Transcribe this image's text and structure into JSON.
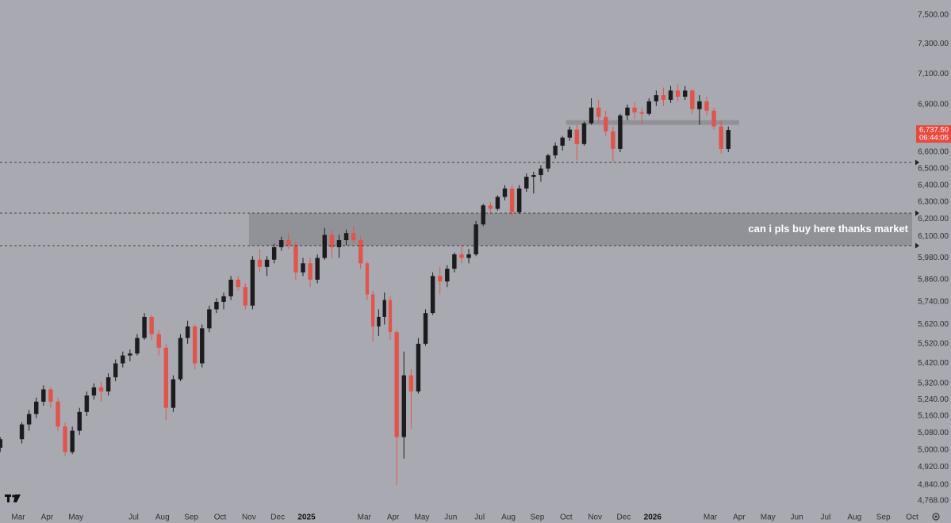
{
  "chart_data": {
    "type": "candlestick",
    "annotation": "can i pls buy here thanks market",
    "last_price": {
      "value": 6737.5,
      "label": "6,737.50"
    },
    "countdown": "06:44:05",
    "up_color": "#1c1c1e",
    "down_color": "#e0544c",
    "price_color": "#e8493f",
    "log_scale": true,
    "ylim": [
      4712,
      7606
    ],
    "yticks": [
      {
        "value": 7500,
        "label": "7,500.00"
      },
      {
        "value": 7300,
        "label": "7,300.00"
      },
      {
        "value": 7100,
        "label": "7,100.00"
      },
      {
        "value": 6900,
        "label": "6,900.00"
      },
      {
        "value": 6600,
        "label": "6,600.00"
      },
      {
        "value": 6500,
        "label": "6,500.00"
      },
      {
        "value": 6400,
        "label": "6,400.00"
      },
      {
        "value": 6300,
        "label": "6,300.00"
      },
      {
        "value": 6200,
        "label": "6,200.00"
      },
      {
        "value": 6100,
        "label": "6,100.00"
      },
      {
        "value": 5980,
        "label": "5,980.00"
      },
      {
        "value": 5860,
        "label": "5,860.00"
      },
      {
        "value": 5740,
        "label": "5,740.00"
      },
      {
        "value": 5620,
        "label": "5,620.00"
      },
      {
        "value": 5520,
        "label": "5,520.00"
      },
      {
        "value": 5420,
        "label": "5,420.00"
      },
      {
        "value": 5320,
        "label": "5,320.00"
      },
      {
        "value": 5240,
        "label": "5,240.00"
      },
      {
        "value": 5160,
        "label": "5,160.00"
      },
      {
        "value": 5080,
        "label": "5,080.00"
      },
      {
        "value": 5000,
        "label": "5,000.00"
      },
      {
        "value": 4920,
        "label": "4,920.00"
      },
      {
        "value": 4840,
        "label": "4,840.00"
      },
      {
        "value": 4768,
        "label": "4,768.00"
      }
    ],
    "xlim": [
      "2024-02",
      "2026-10"
    ],
    "xticks": [
      {
        "value": "2024-03",
        "label": "Mar"
      },
      {
        "value": "2024-04",
        "label": "Apr"
      },
      {
        "value": "2024-05",
        "label": "May"
      },
      {
        "value": "2024-07",
        "label": "Jul"
      },
      {
        "value": "2024-08",
        "label": "Aug"
      },
      {
        "value": "2024-09",
        "label": "Sep"
      },
      {
        "value": "2024-10",
        "label": "Oct"
      },
      {
        "value": "2024-11",
        "label": "Nov"
      },
      {
        "value": "2024-12",
        "label": "Dec"
      },
      {
        "value": "2025-01",
        "label": "2025"
      },
      {
        "value": "2025-03",
        "label": "Mar"
      },
      {
        "value": "2025-04",
        "label": "Apr"
      },
      {
        "value": "2025-05",
        "label": "May"
      },
      {
        "value": "2025-06",
        "label": "Jun"
      },
      {
        "value": "2025-07",
        "label": "Jul"
      },
      {
        "value": "2025-08",
        "label": "Aug"
      },
      {
        "value": "2025-09",
        "label": "Sep"
      },
      {
        "value": "2025-10",
        "label": "Oct"
      },
      {
        "value": "2025-11",
        "label": "Nov"
      },
      {
        "value": "2025-12",
        "label": "Dec"
      },
      {
        "value": "2026-01",
        "label": "2026"
      },
      {
        "value": "2026-03",
        "label": "Mar"
      },
      {
        "value": "2026-04",
        "label": "Apr"
      },
      {
        "value": "2026-05",
        "label": "May"
      },
      {
        "value": "2026-06",
        "label": "Jun"
      },
      {
        "value": "2026-07",
        "label": "Jul"
      },
      {
        "value": "2026-08",
        "label": "Aug"
      },
      {
        "value": "2026-09",
        "label": "Sep"
      },
      {
        "value": "2026-10",
        "label": "Oct"
      }
    ],
    "levels": [
      6537,
      6235,
      6049
    ],
    "zones": [
      {
        "from": 6049,
        "to": 6235,
        "start": "2024-11",
        "color": "#8d8e94"
      },
      {
        "from": 6770,
        "to": 6800,
        "start": "2025-10",
        "end": "2026-04",
        "color": "#8d8e94"
      }
    ],
    "months": [
      {
        "month": "2024-02",
        "candles": [
          [
            4990,
            5030,
            4960,
            5010
          ],
          [
            5010,
            5060,
            4990,
            5050
          ]
        ]
      },
      {
        "month": "2024-03",
        "candles": [
          [
            5050,
            5130,
            5030,
            5120
          ],
          [
            5120,
            5190,
            5090,
            5170
          ],
          [
            5170,
            5250,
            5150,
            5230
          ],
          [
            5230,
            5310,
            5210,
            5290
          ]
        ]
      },
      {
        "month": "2024-04",
        "candles": [
          [
            5290,
            5300,
            5200,
            5230
          ],
          [
            5230,
            5250,
            5090,
            5110
          ],
          [
            5110,
            5130,
            4970,
            4990
          ],
          [
            4990,
            5110,
            4980,
            5090
          ]
        ]
      },
      {
        "month": "2024-05",
        "candles": [
          [
            5090,
            5200,
            5070,
            5180
          ],
          [
            5180,
            5280,
            5160,
            5260
          ],
          [
            5260,
            5320,
            5240,
            5300
          ],
          [
            5300,
            5330,
            5230,
            5280
          ]
        ]
      },
      {
        "month": "2024-06",
        "candles": [
          [
            5280,
            5370,
            5260,
            5350
          ],
          [
            5350,
            5440,
            5330,
            5420
          ],
          [
            5420,
            5480,
            5400,
            5460
          ],
          [
            5460,
            5490,
            5430,
            5470
          ]
        ]
      },
      {
        "month": "2024-07",
        "candles": [
          [
            5470,
            5570,
            5460,
            5550
          ],
          [
            5550,
            5680,
            5540,
            5660
          ],
          [
            5660,
            5670,
            5540,
            5570
          ],
          [
            5570,
            5590,
            5460,
            5500
          ]
        ]
      },
      {
        "month": "2024-08",
        "candles": [
          [
            5500,
            5520,
            5140,
            5200
          ],
          [
            5200,
            5360,
            5180,
            5340
          ],
          [
            5340,
            5570,
            5330,
            5550
          ],
          [
            5550,
            5640,
            5520,
            5610
          ]
        ]
      },
      {
        "month": "2024-09",
        "candles": [
          [
            5610,
            5620,
            5390,
            5420
          ],
          [
            5420,
            5620,
            5400,
            5600
          ],
          [
            5600,
            5720,
            5580,
            5700
          ],
          [
            5700,
            5760,
            5680,
            5740
          ]
        ]
      },
      {
        "month": "2024-10",
        "candles": [
          [
            5740,
            5790,
            5700,
            5770
          ],
          [
            5770,
            5880,
            5750,
            5860
          ],
          [
            5860,
            5880,
            5800,
            5820
          ],
          [
            5820,
            5840,
            5700,
            5720
          ]
        ]
      },
      {
        "month": "2024-11",
        "candles": [
          [
            5720,
            5990,
            5700,
            5970
          ],
          [
            5970,
            6030,
            5900,
            5930
          ],
          [
            5930,
            5990,
            5880,
            5970
          ],
          [
            5970,
            6060,
            5950,
            6040
          ]
        ]
      },
      {
        "month": "2024-12",
        "candles": [
          [
            6040,
            6100,
            6020,
            6080
          ],
          [
            6080,
            6120,
            6030,
            6050
          ],
          [
            6050,
            6070,
            5860,
            5900
          ],
          [
            5900,
            5980,
            5880,
            5950
          ]
        ]
      },
      {
        "month": "2025-01",
        "candles": [
          [
            5950,
            5980,
            5820,
            5860
          ],
          [
            5860,
            6000,
            5840,
            5980
          ],
          [
            5980,
            6150,
            5970,
            6110
          ],
          [
            6110,
            6140,
            5980,
            6040
          ]
        ]
      },
      {
        "month": "2025-02",
        "candles": [
          [
            6040,
            6110,
            5980,
            6080
          ],
          [
            6080,
            6140,
            6050,
            6120
          ],
          [
            6120,
            6160,
            6060,
            6080
          ],
          [
            6080,
            6100,
            5920,
            5950
          ]
        ]
      },
      {
        "month": "2025-03",
        "candles": [
          [
            5950,
            5960,
            5750,
            5780
          ],
          [
            5780,
            5800,
            5530,
            5610
          ],
          [
            5610,
            5700,
            5560,
            5660
          ],
          [
            5660,
            5790,
            5620,
            5750
          ],
          [
            5750,
            5770,
            5540,
            5580
          ]
        ]
      },
      {
        "month": "2025-04",
        "candles": [
          [
            5580,
            5590,
            4840,
            5060
          ],
          [
            5060,
            5480,
            4960,
            5360
          ],
          [
            5360,
            5390,
            5100,
            5280
          ],
          [
            5280,
            5550,
            5270,
            5520
          ]
        ]
      },
      {
        "month": "2025-05",
        "candles": [
          [
            5520,
            5700,
            5510,
            5680
          ],
          [
            5680,
            5900,
            5670,
            5880
          ],
          [
            5880,
            5930,
            5780,
            5850
          ],
          [
            5850,
            5940,
            5820,
            5920
          ]
        ]
      },
      {
        "month": "2025-06",
        "candles": [
          [
            5920,
            6010,
            5900,
            6000
          ],
          [
            6000,
            6050,
            5950,
            5980
          ],
          [
            5980,
            6030,
            5950,
            6000
          ],
          [
            6000,
            6190,
            5990,
            6170
          ]
        ]
      },
      {
        "month": "2025-07",
        "candles": [
          [
            6170,
            6290,
            6160,
            6280
          ],
          [
            6280,
            6300,
            6230,
            6260
          ],
          [
            6260,
            6340,
            6250,
            6330
          ],
          [
            6330,
            6400,
            6310,
            6380
          ]
        ]
      },
      {
        "month": "2025-08",
        "candles": [
          [
            6380,
            6400,
            6210,
            6240
          ],
          [
            6240,
            6400,
            6230,
            6380
          ],
          [
            6380,
            6470,
            6360,
            6450
          ],
          [
            6450,
            6480,
            6350,
            6460
          ]
        ]
      },
      {
        "month": "2025-09",
        "candles": [
          [
            6460,
            6520,
            6420,
            6500
          ],
          [
            6500,
            6590,
            6480,
            6580
          ],
          [
            6580,
            6660,
            6560,
            6640
          ],
          [
            6640,
            6700,
            6610,
            6690
          ]
        ]
      },
      {
        "month": "2025-10",
        "candles": [
          [
            6690,
            6760,
            6670,
            6740
          ],
          [
            6740,
            6770,
            6550,
            6650
          ],
          [
            6650,
            6790,
            6640,
            6780
          ],
          [
            6780,
            6940,
            6770,
            6880
          ]
        ]
      },
      {
        "month": "2025-11",
        "candles": [
          [
            6880,
            6930,
            6780,
            6820
          ],
          [
            6820,
            6860,
            6700,
            6730
          ],
          [
            6730,
            6760,
            6540,
            6620
          ],
          [
            6620,
            6840,
            6600,
            6830
          ]
        ]
      },
      {
        "month": "2025-12",
        "candles": [
          [
            6830,
            6900,
            6800,
            6880
          ],
          [
            6880,
            6920,
            6810,
            6850
          ],
          [
            6850,
            6880,
            6770,
            6840
          ],
          [
            6840,
            6940,
            6830,
            6920
          ]
        ]
      },
      {
        "month": "2026-01",
        "candles": [
          [
            6920,
            6990,
            6890,
            6960
          ],
          [
            6960,
            7010,
            6890,
            6930
          ],
          [
            6930,
            7020,
            6910,
            6990
          ],
          [
            6990,
            7030,
            6920,
            6950
          ]
        ]
      },
      {
        "month": "2026-02",
        "candles": [
          [
            6950,
            7020,
            6930,
            6990
          ],
          [
            6990,
            7000,
            6840,
            6870
          ],
          [
            6870,
            6960,
            6770,
            6920
          ],
          [
            6920,
            6950,
            6830,
            6860
          ]
        ]
      },
      {
        "month": "2026-03",
        "candles": [
          [
            6860,
            6880,
            6740,
            6760
          ],
          [
            6760,
            6800,
            6590,
            6620
          ],
          [
            6620,
            6760,
            6600,
            6737.5
          ]
        ]
      }
    ]
  }
}
